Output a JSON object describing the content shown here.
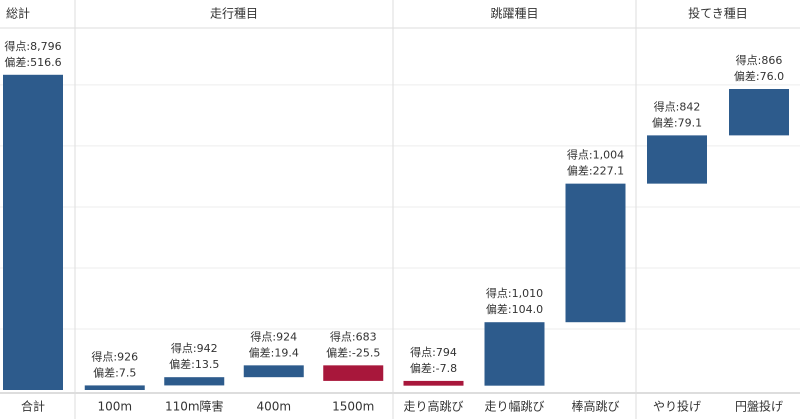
{
  "chart_data": {
    "type": "waterfall",
    "groups": [
      {
        "name": "総計",
        "is_total": true,
        "categories": [
          "合計"
        ],
        "values": [
          516.6
        ],
        "value_labels": [
          "偏差:516.6"
        ],
        "score_labels": [
          "得点:8,796"
        ]
      },
      {
        "name": "走行種目",
        "categories": [
          "100m",
          "110m障害",
          "400m",
          "1500m"
        ],
        "values": [
          7.5,
          13.5,
          19.4,
          -25.5
        ],
        "value_labels": [
          "偏差:7.5",
          "偏差:13.5",
          "偏差:19.4",
          "偏差:-25.5"
        ],
        "score_labels": [
          "得点:926",
          "得点:942",
          "得点:924",
          "得点:683"
        ]
      },
      {
        "name": "跳躍種目",
        "categories": [
          "走り高跳び",
          "走り幅跳び",
          "棒高跳び"
        ],
        "values": [
          -7.8,
          104.0,
          227.1
        ],
        "value_labels": [
          "偏差:-7.8",
          "偏差:104.0",
          "偏差:227.1"
        ],
        "score_labels": [
          "得点:794",
          "得点:1,010",
          "得点:1,004"
        ]
      },
      {
        "name": "投てき種目",
        "categories": [
          "やり投げ",
          "円盤投げ"
        ],
        "values": [
          79.1,
          76.0
        ],
        "value_labels": [
          "偏差:79.1",
          "偏差:76.0"
        ],
        "score_labels": [
          "得点:842",
          "得点:866"
        ]
      }
    ],
    "colors": {
      "increase": "#2d5b8c",
      "decrease": "#a8173b"
    },
    "ylim": [
      0,
      590
    ],
    "yticks": [
      100,
      200,
      300,
      400,
      500
    ],
    "grid": true
  }
}
